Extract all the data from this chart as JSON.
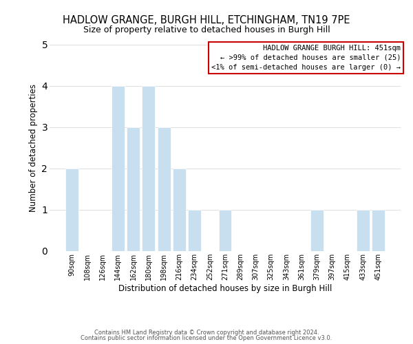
{
  "title": "HADLOW GRANGE, BURGH HILL, ETCHINGHAM, TN19 7PE",
  "subtitle": "Size of property relative to detached houses in Burgh Hill",
  "xlabel": "Distribution of detached houses by size in Burgh Hill",
  "ylabel": "Number of detached properties",
  "bar_color": "#c8dff0",
  "categories": [
    "90sqm",
    "108sqm",
    "126sqm",
    "144sqm",
    "162sqm",
    "180sqm",
    "198sqm",
    "216sqm",
    "234sqm",
    "252sqm",
    "271sqm",
    "289sqm",
    "307sqm",
    "325sqm",
    "343sqm",
    "361sqm",
    "379sqm",
    "397sqm",
    "415sqm",
    "433sqm",
    "451sqm"
  ],
  "values": [
    2,
    0,
    0,
    4,
    3,
    4,
    3,
    2,
    1,
    0,
    1,
    0,
    0,
    0,
    0,
    0,
    1,
    0,
    0,
    1,
    1
  ],
  "ylim": [
    0,
    5
  ],
  "yticks": [
    0,
    1,
    2,
    3,
    4,
    5
  ],
  "annotation_title": "HADLOW GRANGE BURGH HILL: 451sqm",
  "annotation_line1": "← >99% of detached houses are smaller (25)",
  "annotation_line2": "<1% of semi-detached houses are larger (0) →",
  "footer1": "Contains HM Land Registry data © Crown copyright and database right 2024.",
  "footer2": "Contains public sector information licensed under the Open Government Licence v3.0.",
  "box_edge_color": "#cc0000",
  "background_color": "#ffffff",
  "grid_color": "#dddddd",
  "title_fontsize": 10.5,
  "subtitle_fontsize": 9,
  "ylabel_fontsize": 8.5,
  "xlabel_fontsize": 8.5,
  "tick_fontsize": 7,
  "annotation_fontsize": 7.5,
  "footer_fontsize": 6
}
